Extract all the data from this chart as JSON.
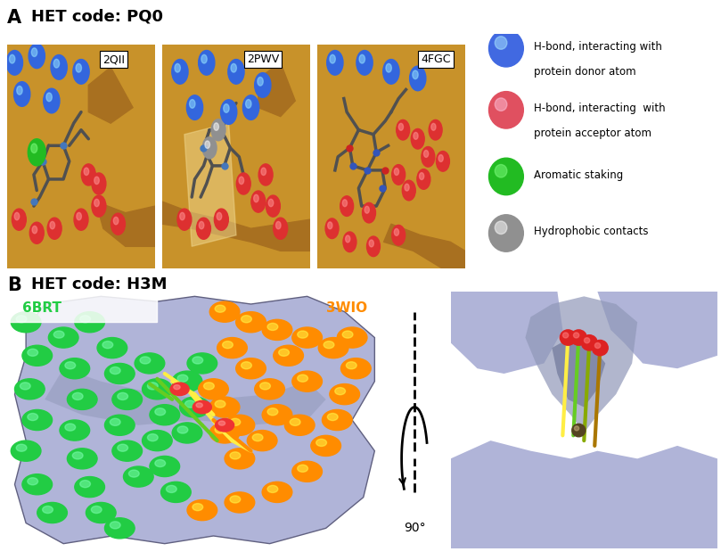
{
  "panel_A_label": "A",
  "panel_B_label": "B",
  "het_code_A": "HET code: PQ0",
  "het_code_B": "HET code: H3M",
  "subpanel_labels_A": [
    "2QII",
    "2PWV",
    "4FGC"
  ],
  "legend_colors": [
    "#4169E1",
    "#E05060",
    "#22BB22",
    "#909090"
  ],
  "legend_labels": [
    "H-bond, interacting with\nprotein donor atom",
    "H-bond, interacting  with\nprotein acceptor atom",
    "Aromatic staking",
    "Hydrophobic contacts"
  ],
  "panel_B_left_label_6BRT_color": "#22CC44",
  "panel_B_left_label_3WIO_color": "#FF8C00",
  "rotation_text": "90°",
  "protein_ribbon_color": "#C8922A",
  "protein_ribbon_dark": "#A87020",
  "protein_ribbon_light": "#E0B050",
  "mol_color": "#505050",
  "blue_dot_color": "#3366DD",
  "red_dot_color": "#DD3030",
  "green_dot_color": "#22BB22",
  "gray_dot_color": "#909090",
  "green_sphere_color": "#22CC44",
  "orange_sphere_color": "#FF8C00",
  "surface_lavender": "#B0B4D8",
  "surface_dark": "#8890A8",
  "figure_width": 8.09,
  "figure_height": 6.28,
  "dpi": 100
}
